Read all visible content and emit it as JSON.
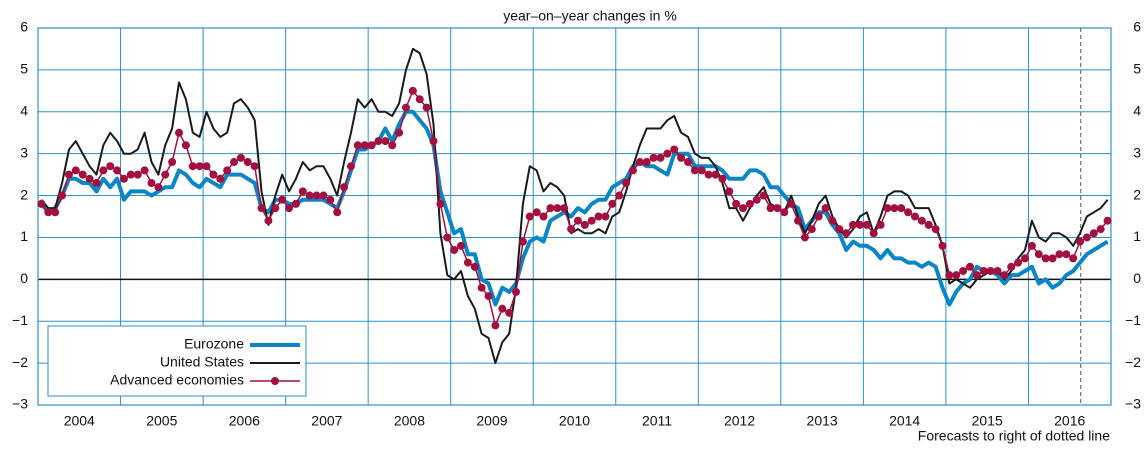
{
  "chart_data": {
    "type": "line",
    "subtitle": "year–on–year changes in %",
    "note": "Forecasts to right of dotted line",
    "categories": [
      null,
      null,
      null,
      null,
      null,
      "2004",
      null,
      null,
      null,
      null,
      null,
      null,
      null,
      null,
      null,
      null,
      null,
      "2005",
      null,
      null,
      null,
      null,
      null,
      null,
      null,
      null,
      null,
      null,
      null,
      "2006",
      null,
      null,
      null,
      null,
      null,
      null,
      null,
      null,
      null,
      null,
      null,
      "2007",
      null,
      null,
      null,
      null,
      null,
      null,
      null,
      null,
      null,
      null,
      null,
      "2008",
      null,
      null,
      null,
      null,
      null,
      null,
      null,
      null,
      null,
      null,
      null,
      "2009",
      null,
      null,
      null,
      null,
      null,
      null,
      null,
      null,
      null,
      null,
      null,
      "2010",
      null,
      null,
      null,
      null,
      null,
      null,
      null,
      null,
      null,
      null,
      null,
      "2011",
      null,
      null,
      null,
      null,
      null,
      null,
      null,
      null,
      null,
      null,
      null,
      "2012",
      null,
      null,
      null,
      null,
      null,
      null,
      null,
      null,
      null,
      null,
      null,
      "2013",
      null,
      null,
      null,
      null,
      null,
      null,
      null,
      null,
      null,
      null,
      null,
      "2014",
      null,
      null,
      null,
      null,
      null,
      null,
      null,
      null,
      null,
      null,
      null,
      "2015",
      null,
      null,
      null,
      null,
      null,
      null,
      null,
      null,
      null,
      null,
      null,
      "2016",
      null,
      null,
      null,
      null,
      null,
      null
    ],
    "series": [
      {
        "name": "Eurozone",
        "color": "#0a86c8",
        "values": [
          1.8,
          1.6,
          1.7,
          2.0,
          2.4,
          2.4,
          2.3,
          2.3,
          2.1,
          2.4,
          2.2,
          2.4,
          1.9,
          2.1,
          2.1,
          2.1,
          2.0,
          2.1,
          2.2,
          2.2,
          2.6,
          2.5,
          2.3,
          2.2,
          2.4,
          2.3,
          2.2,
          2.5,
          2.5,
          2.5,
          2.4,
          2.3,
          1.7,
          1.6,
          1.9,
          1.9,
          1.8,
          1.8,
          1.9,
          1.9,
          1.9,
          1.9,
          1.8,
          1.7,
          2.1,
          2.6,
          3.1,
          3.1,
          3.2,
          3.3,
          3.6,
          3.3,
          3.7,
          4.0,
          4.0,
          3.8,
          3.6,
          3.2,
          2.1,
          1.6,
          1.1,
          1.2,
          0.6,
          0.6,
          0.0,
          -0.1,
          -0.6,
          -0.2,
          -0.3,
          -0.1,
          0.5,
          0.9,
          1.0,
          0.9,
          1.4,
          1.5,
          1.6,
          1.5,
          1.7,
          1.6,
          1.8,
          1.9,
          1.9,
          2.2,
          2.3,
          2.4,
          2.7,
          2.8,
          2.7,
          2.7,
          2.6,
          2.5,
          3.0,
          3.0,
          3.0,
          2.7,
          2.7,
          2.7,
          2.7,
          2.6,
          2.4,
          2.4,
          2.4,
          2.6,
          2.6,
          2.5,
          2.2,
          2.2,
          2.0,
          1.8,
          1.7,
          1.2,
          1.4,
          1.6,
          1.6,
          1.3,
          1.1,
          0.7,
          0.9,
          0.8,
          0.8,
          0.7,
          0.5,
          0.7,
          0.5,
          0.5,
          0.4,
          0.4,
          0.3,
          0.4,
          0.3,
          -0.2,
          -0.6,
          -0.3,
          -0.1,
          0.0,
          0.3,
          0.2,
          0.2,
          0.1,
          -0.1,
          0.1,
          0.1,
          0.2,
          0.3,
          -0.1,
          0.0,
          -0.2,
          -0.1,
          0.1,
          0.2,
          0.4,
          0.6,
          0.7,
          0.8,
          0.9
        ]
      },
      {
        "name": "United States",
        "color": "#1a1a1a",
        "values": [
          1.9,
          1.7,
          1.7,
          2.3,
          3.1,
          3.3,
          3.0,
          2.7,
          2.5,
          3.2,
          3.5,
          3.3,
          3.0,
          3.0,
          3.1,
          3.5,
          2.8,
          2.5,
          3.2,
          3.6,
          4.7,
          4.3,
          3.5,
          3.4,
          4.0,
          3.6,
          3.4,
          3.5,
          4.2,
          4.3,
          4.1,
          3.8,
          2.1,
          1.3,
          2.0,
          2.5,
          2.1,
          2.4,
          2.8,
          2.6,
          2.7,
          2.7,
          2.4,
          2.0,
          2.8,
          3.5,
          4.3,
          4.1,
          4.3,
          4.0,
          4.0,
          3.9,
          4.2,
          5.0,
          5.5,
          5.4,
          4.9,
          3.7,
          1.1,
          0.1,
          0.0,
          0.2,
          -0.4,
          -0.7,
          -1.3,
          -1.4,
          -2.0,
          -1.5,
          -1.3,
          -0.2,
          1.8,
          2.7,
          2.6,
          2.1,
          2.3,
          2.2,
          2.0,
          1.1,
          1.2,
          1.1,
          1.1,
          1.2,
          1.1,
          1.5,
          1.6,
          2.1,
          2.7,
          3.2,
          3.6,
          3.6,
          3.6,
          3.8,
          3.9,
          3.5,
          3.4,
          3.0,
          2.9,
          2.9,
          2.7,
          2.3,
          1.7,
          1.7,
          1.4,
          1.7,
          2.0,
          2.2,
          1.8,
          1.7,
          1.6,
          2.0,
          1.5,
          1.1,
          1.4,
          1.8,
          2.0,
          1.5,
          1.2,
          1.0,
          1.2,
          1.5,
          1.6,
          1.1,
          1.5,
          2.0,
          2.1,
          2.1,
          2.0,
          1.7,
          1.7,
          1.7,
          1.3,
          0.8,
          -0.1,
          0.0,
          -0.1,
          -0.2,
          0.0,
          0.1,
          0.2,
          0.2,
          0.0,
          0.2,
          0.5,
          0.7,
          1.4,
          1.0,
          0.9,
          1.1,
          1.1,
          1.0,
          0.8,
          1.1,
          1.5,
          1.6,
          1.7,
          1.9
        ]
      },
      {
        "name": "Advanced economies",
        "color": "#a3103f",
        "values": [
          1.8,
          1.6,
          1.6,
          2.0,
          2.5,
          2.6,
          2.5,
          2.4,
          2.3,
          2.6,
          2.7,
          2.6,
          2.4,
          2.5,
          2.5,
          2.6,
          2.3,
          2.2,
          2.5,
          2.8,
          3.5,
          3.2,
          2.7,
          2.7,
          2.7,
          2.5,
          2.4,
          2.6,
          2.8,
          2.9,
          2.8,
          2.7,
          1.7,
          1.4,
          1.7,
          1.9,
          1.7,
          1.8,
          2.1,
          2.0,
          2.0,
          2.0,
          1.9,
          1.6,
          2.2,
          2.7,
          3.2,
          3.2,
          3.2,
          3.3,
          3.3,
          3.2,
          3.5,
          4.1,
          4.5,
          4.3,
          4.1,
          3.3,
          1.8,
          1.0,
          0.7,
          0.8,
          0.4,
          0.3,
          -0.2,
          -0.4,
          -1.1,
          -0.7,
          -0.8,
          -0.3,
          0.9,
          1.5,
          1.6,
          1.5,
          1.7,
          1.7,
          1.7,
          1.2,
          1.4,
          1.3,
          1.4,
          1.5,
          1.5,
          1.8,
          2.0,
          2.3,
          2.6,
          2.8,
          2.8,
          2.9,
          2.9,
          3.0,
          3.1,
          2.9,
          2.8,
          2.6,
          2.6,
          2.5,
          2.5,
          2.4,
          2.1,
          1.8,
          1.7,
          1.8,
          1.9,
          2.0,
          1.7,
          1.7,
          1.6,
          1.8,
          1.4,
          1.0,
          1.2,
          1.5,
          1.7,
          1.4,
          1.2,
          1.1,
          1.3,
          1.3,
          1.3,
          1.1,
          1.3,
          1.7,
          1.7,
          1.7,
          1.6,
          1.5,
          1.4,
          1.3,
          1.2,
          0.8,
          0.1,
          0.1,
          0.2,
          0.3,
          0.1,
          0.2,
          0.2,
          0.2,
          0.1,
          0.3,
          0.4,
          0.5,
          0.8,
          0.6,
          0.5,
          0.5,
          0.6,
          0.6,
          0.5,
          0.9,
          1.0,
          1.1,
          1.2,
          1.4
        ]
      }
    ],
    "ylim": [
      -3,
      6
    ],
    "yticks": [
      {
        "value": -3,
        "label": "−3"
      },
      {
        "value": -2,
        "label": "−2"
      },
      {
        "value": -1,
        "label": "−1"
      },
      0,
      1,
      2,
      3,
      4,
      5,
      6
    ],
    "grid": true
  }
}
